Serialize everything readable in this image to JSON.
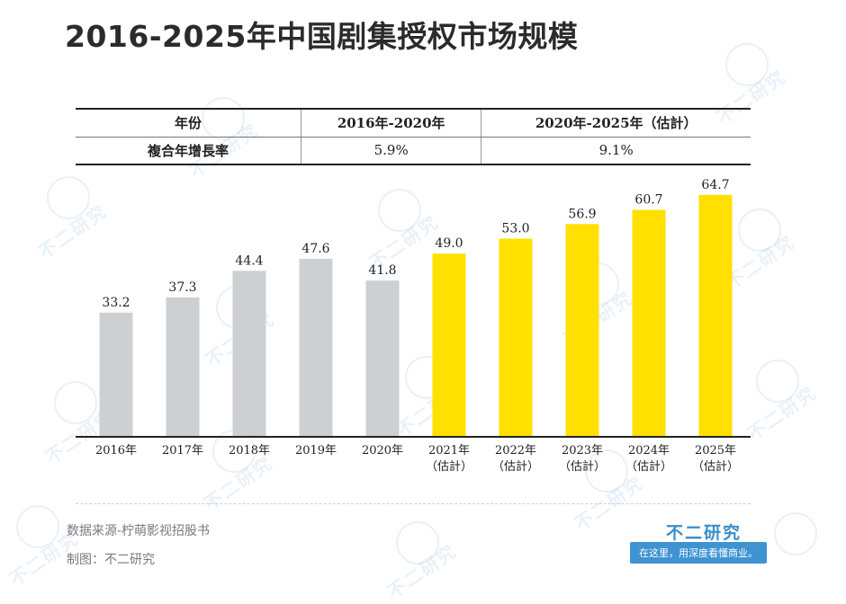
{
  "title": "2016-2025年中国剧集授权市场规模",
  "table": {
    "header": [
      "年份",
      "2016年-2020年",
      "2020年-2025年（估計）"
    ],
    "row_label": "複合年增長率",
    "row_values": [
      "5.9%",
      "9.1%"
    ]
  },
  "chart_data": {
    "type": "bar",
    "categories": [
      "2016年",
      "2017年",
      "2018年",
      "2019年",
      "2020年",
      "2021年",
      "2022年",
      "2023年",
      "2024年",
      "2025年"
    ],
    "category_subtitles": [
      "",
      "",
      "",
      "",
      "",
      "（估計）",
      "（估計）",
      "（估計）",
      "（估計）",
      "（估計）"
    ],
    "values": [
      33.2,
      37.3,
      44.4,
      47.6,
      41.8,
      49.0,
      53.0,
      56.9,
      60.7,
      64.7
    ],
    "value_labels": [
      "33.2",
      "37.3",
      "44.4",
      "47.6",
      "41.8",
      "49.0",
      "53.0",
      "56.9",
      "60.7",
      "64.7"
    ],
    "colors": {
      "actual": "#cdd0d3",
      "estimate": "#ffe000"
    },
    "ylim": [
      0,
      70
    ],
    "xlabel": "",
    "ylabel": "",
    "grid": false
  },
  "footer": {
    "source": "数据来源-柠萌影视招股书",
    "maker": "制图：不二研究",
    "brand": "不二研究",
    "slogan": "在这里，用深度看懂商业。"
  },
  "watermark": "不二研究"
}
